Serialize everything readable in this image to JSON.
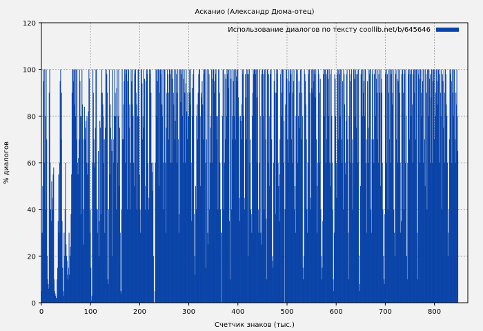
{
  "chart_data": {
    "type": "bar",
    "title": "Асканио (Александр Дюма-отец)",
    "xlabel": "Счетчик знаков (тыс.)",
    "ylabel": "% диалогов",
    "xlim": [
      0,
      868
    ],
    "ylim": [
      0,
      120
    ],
    "xticks": [
      0,
      100,
      200,
      300,
      400,
      500,
      600,
      700,
      800
    ],
    "yticks": [
      0,
      20,
      40,
      60,
      80,
      100,
      120
    ],
    "grid": true,
    "legend_position": "top-right",
    "series": [
      {
        "name": "Использование диалогов по тексту coollib.net/b/645646",
        "color": "#0a44a8",
        "x_range": [
          0,
          848
        ],
        "bar_width": 1,
        "values": [
          5,
          30,
          50,
          100,
          95,
          60,
          100,
          80,
          40,
          100,
          70,
          20,
          10,
          8,
          6,
          90,
          100,
          60,
          40,
          35,
          52,
          45,
          40,
          55,
          58,
          10,
          5,
          4,
          3,
          2,
          2,
          10,
          15,
          35,
          55,
          30,
          60,
          95,
          100,
          70,
          90,
          35,
          15,
          5,
          3,
          30,
          20,
          40,
          60,
          25,
          20,
          18,
          12,
          10,
          15,
          30,
          12,
          20,
          24,
          38,
          55,
          90,
          100,
          100,
          95,
          100,
          85,
          100,
          80,
          100,
          70,
          100,
          60,
          55,
          62,
          70,
          100,
          95,
          80,
          38,
          80,
          100,
          85,
          70,
          40,
          25,
          84,
          70,
          75,
          78,
          60,
          80,
          55,
          60,
          82,
          100,
          96,
          30,
          40,
          15,
          1,
          3,
          60,
          100,
          90,
          70,
          60,
          58,
          75,
          100,
          100,
          40,
          40,
          30,
          65,
          20,
          35,
          78,
          75,
          38,
          90,
          100,
          90,
          85,
          80,
          60,
          70,
          30,
          75,
          100,
          100,
          98,
          90,
          10,
          8,
          40,
          100,
          55,
          85,
          75,
          70,
          65,
          20,
          100,
          60,
          70,
          80,
          100,
          90,
          80,
          40,
          92,
          100,
          60,
          80,
          100,
          50,
          75,
          30,
          5,
          4,
          40,
          100,
          70,
          70,
          85,
          95,
          100,
          60,
          100,
          98,
          100,
          40,
          95,
          100,
          100,
          75,
          85,
          40,
          60,
          100,
          95,
          85,
          100,
          80,
          60,
          50,
          100,
          98,
          100,
          90,
          85,
          40,
          80,
          100,
          100,
          80,
          55,
          40,
          30,
          100,
          100,
          94,
          70,
          80,
          100,
          75,
          96,
          40,
          50,
          95,
          100,
          98,
          100,
          60,
          40,
          45,
          100,
          98,
          100,
          90,
          60,
          48,
          56,
          60,
          20,
          0,
          0,
          5,
          60,
          100,
          100,
          80,
          95,
          100,
          100,
          50,
          100,
          90,
          100,
          98,
          100,
          85,
          80,
          100,
          60,
          40,
          100,
          100,
          60,
          30,
          75,
          90,
          100,
          98,
          90,
          70,
          100,
          100,
          98,
          60,
          100,
          60,
          96,
          100,
          90,
          85,
          100,
          70,
          78,
          100,
          98,
          60,
          90,
          100,
          70,
          30,
          38,
          100,
          100,
          86,
          98,
          100,
          80,
          100,
          60,
          96,
          100,
          90,
          60,
          94,
          100,
          82,
          70,
          90,
          80,
          80,
          100,
          90,
          85,
          100,
          60,
          35,
          92,
          80,
          98,
          100,
          38,
          20,
          12,
          50,
          40,
          80,
          85,
          70,
          90,
          98,
          100,
          100,
          80,
          50,
          90,
          88,
          95,
          85,
          70,
          100,
          98,
          100,
          100,
          60,
          15,
          70,
          100,
          30,
          25,
          100,
          98,
          40,
          60,
          75,
          80,
          100,
          60,
          96,
          100,
          100,
          90,
          95,
          100,
          98,
          100,
          80,
          70,
          80,
          40,
          100,
          100,
          90,
          60,
          40,
          30,
          0,
          30,
          80,
          100,
          100,
          40,
          60,
          98,
          70,
          96,
          80,
          100,
          98,
          100,
          92,
          100,
          35,
          10,
          100,
          96,
          40,
          100,
          80,
          70,
          95,
          100,
          80,
          100,
          70,
          100,
          97,
          95,
          100,
          100,
          88,
          80,
          45,
          35,
          80,
          78,
          70,
          85,
          100,
          98,
          100,
          80,
          45,
          40,
          98,
          88,
          70,
          100,
          98,
          100,
          20,
          98,
          100,
          60,
          70,
          40,
          38,
          30,
          80,
          90,
          100,
          98,
          100,
          100,
          100,
          98,
          100,
          88,
          60,
          100,
          40,
          30,
          60,
          100,
          80,
          30,
          25,
          98,
          100,
          100,
          80,
          98,
          40,
          100,
          100,
          70,
          36,
          10,
          100,
          100,
          60,
          98,
          80,
          50,
          98,
          100,
          100,
          70,
          20,
          18,
          15,
          60,
          95,
          100,
          90,
          38,
          90,
          100,
          98,
          100,
          60,
          50,
          35,
          55,
          70,
          98,
          100,
          80,
          90,
          100,
          60,
          100,
          78,
          0,
          40,
          85,
          100,
          100,
          96,
          70,
          60,
          100,
          95,
          90,
          100,
          100,
          98,
          70,
          100,
          60,
          90,
          95,
          100,
          40,
          50,
          30,
          80,
          100,
          98,
          100,
          60,
          80,
          95,
          75,
          90,
          100,
          70,
          100,
          90,
          80,
          15,
          10,
          20,
          100,
          98,
          95,
          85,
          70,
          40,
          30,
          60,
          100,
          98,
          100,
          90,
          40,
          45,
          100,
          92,
          100,
          90,
          100,
          95,
          100,
          98,
          88,
          100,
          70,
          30,
          50,
          60,
          100,
          98,
          60,
          90,
          96,
          40,
          20,
          10,
          15,
          35,
          98,
          100,
          80,
          100,
          100,
          60,
          98,
          70,
          100,
          100,
          96,
          80,
          100,
          60,
          50,
          98,
          100,
          80,
          60,
          40,
          10,
          5,
          30,
          98,
          96,
          80,
          60,
          45,
          98,
          100,
          70,
          100,
          100,
          98,
          80,
          100,
          100,
          70,
          60,
          95,
          40,
          100,
          98,
          85,
          60,
          55,
          78,
          98,
          100,
          70,
          30,
          10,
          80,
          100,
          95,
          60,
          98,
          100,
          70,
          40,
          60,
          100,
          100,
          96,
          80,
          100,
          98,
          75,
          100,
          98,
          60,
          100,
          20,
          8,
          5,
          50,
          98,
          100,
          100,
          80,
          100,
          90,
          95,
          80,
          100,
          100,
          60,
          30,
          70,
          95,
          75,
          60,
          100,
          98,
          100,
          100,
          40,
          30,
          70,
          100,
          98,
          70,
          60,
          98,
          100,
          80,
          100,
          96,
          90,
          70,
          100,
          60,
          98,
          100,
          90,
          50,
          100,
          96,
          90,
          60,
          40,
          20,
          10,
          8,
          38,
          98,
          100,
          100,
          60,
          98,
          40,
          100,
          90,
          70,
          100,
          100,
          60,
          98,
          100,
          85,
          90,
          100,
          40,
          30,
          20,
          100,
          98,
          70,
          100,
          96,
          60,
          95,
          100,
          100,
          90,
          60,
          30,
          35,
          98,
          100,
          100,
          90,
          40,
          98,
          100,
          60,
          100,
          80,
          20,
          10,
          60,
          100,
          98,
          100,
          70,
          98,
          100,
          80,
          100,
          85,
          60,
          98,
          100,
          100,
          90,
          100,
          70,
          100,
          100,
          30,
          10,
          100,
          98,
          100,
          96,
          60,
          100,
          90,
          80,
          100,
          95,
          60,
          100,
          100,
          70,
          50,
          100,
          98,
          90,
          40,
          100,
          100,
          80,
          100,
          96,
          60,
          98,
          88,
          100,
          100,
          60,
          95,
          100,
          100,
          70,
          100,
          80,
          90,
          100,
          95,
          85,
          100,
          100,
          60,
          98,
          100,
          90,
          80,
          100,
          40,
          98,
          95,
          75,
          100,
          90,
          60,
          100,
          98,
          85,
          80,
          60,
          20,
          30,
          40,
          70,
          100,
          98,
          100,
          95,
          60,
          100,
          90,
          80,
          100,
          100,
          70,
          60,
          90,
          85,
          100,
          80,
          65
        ]
      }
    ]
  }
}
